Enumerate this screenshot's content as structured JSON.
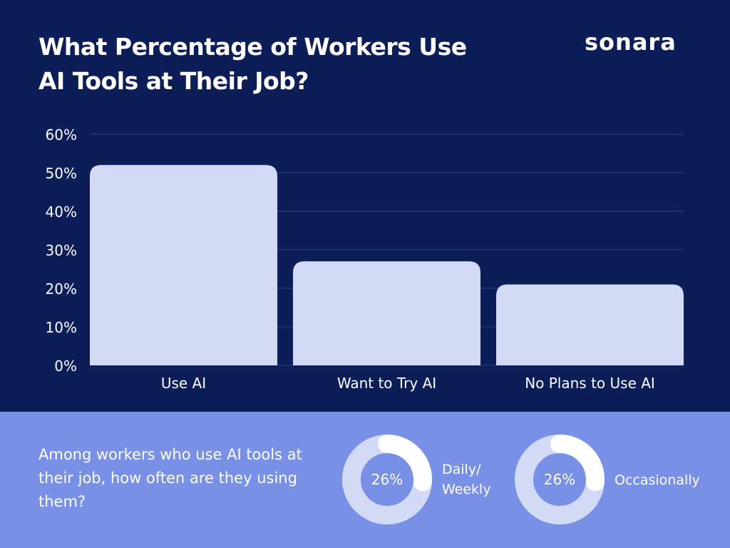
{
  "header": {
    "title": "What Percentage of Workers Use AI Tools at Their Job?",
    "logo": "sonara"
  },
  "colors": {
    "background": "#0d1d57",
    "bar": "#d3daf5",
    "bottom_panel": "#7890e6",
    "donut_track": "#d3daf5",
    "donut_fill": "#ffffff"
  },
  "chart_data": [
    {
      "type": "bar",
      "categories": [
        "Use AI",
        "Want to Try AI",
        "No Plans to Use AI"
      ],
      "values": [
        52,
        27,
        21
      ],
      "ylim": [
        0,
        60
      ],
      "yticks": [
        "0%",
        "10%",
        "20%",
        "30%",
        "40%",
        "50%",
        "60%"
      ],
      "grid": true,
      "title": "",
      "xlabel": "",
      "ylabel": ""
    },
    {
      "type": "pie",
      "variant": "donut",
      "title": "Among workers who use AI tools at their job, how often are they using them?",
      "items": [
        {
          "label": "Daily/ Weekly",
          "value": 26,
          "display": "26%"
        },
        {
          "label": "Occasionally",
          "value": 26,
          "display": "26%"
        }
      ]
    }
  ]
}
